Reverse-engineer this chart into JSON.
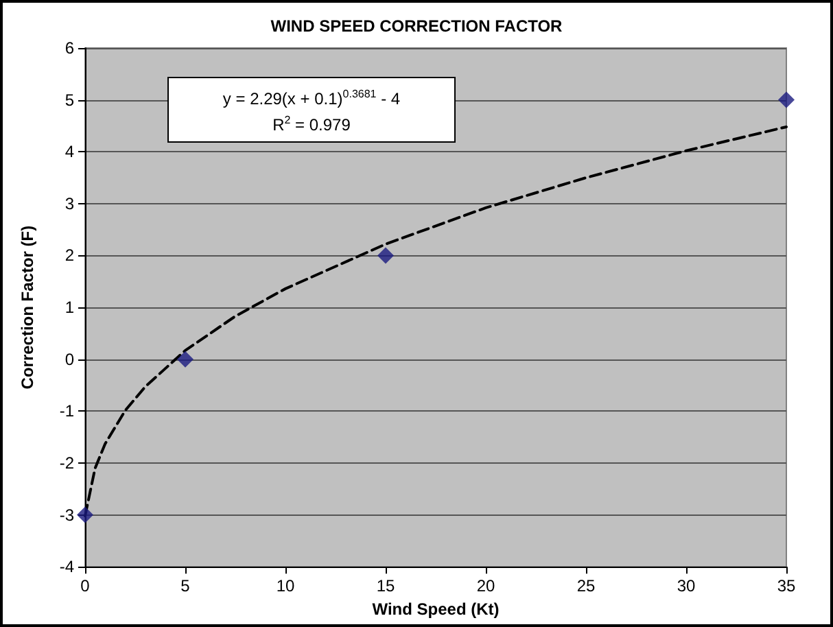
{
  "chart_data": {
    "type": "scatter",
    "title": "WIND SPEED CORRECTION FACTOR",
    "xlabel": "Wind Speed (Kt)",
    "ylabel": "Correction Factor (F)",
    "annotations": [
      "y = 2.29(x + 0.1)$^{0.3681}$ - 4",
      "R$^{2}$ = 0.979"
    ],
    "x": [
      0,
      5,
      15,
      35
    ],
    "series": [
      {
        "color": "#1a1a80",
        "values": [
          -3,
          0,
          2,
          5
        ],
        "marker": "diamond"
      },
      {
        "type": "line",
        "color": "#000000",
        "line_style": "dashed",
        "marker": "none",
        "x": [
          0,
          0.5,
          1,
          2,
          3,
          5,
          7.5,
          10,
          15,
          20,
          25,
          30,
          35
        ],
        "values": [
          -3.02,
          -2.1,
          -1.63,
          -0.99,
          -0.53,
          0.17,
          0.83,
          1.36,
          2.22,
          2.92,
          3.5,
          4.02,
          4.48
        ]
      }
    ],
    "xlim": [
      0,
      35
    ],
    "xticks": [
      0,
      5,
      10,
      15,
      20,
      25,
      30,
      35
    ],
    "ylim": [
      -4,
      6
    ],
    "yticks": [
      -4,
      -3,
      -2,
      -1,
      0,
      1,
      2,
      3,
      4,
      5,
      6
    ],
    "grid": "y"
  }
}
